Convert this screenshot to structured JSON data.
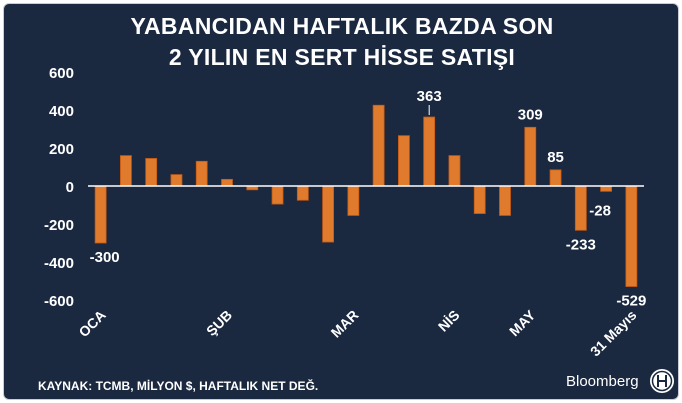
{
  "header": {
    "title_line1": "YABANCIDAN HAFTALIK BAZDA SON",
    "title_line2": "2 YILIN EN SERT HİSSE SATIŞI"
  },
  "footer": {
    "source": "KAYNAK: TCMB, MİLYON $, HAFTALIK NET DEĞ.",
    "brand": "Bloomberg",
    "logo_icon": "ht-emblem-icon"
  },
  "colors": {
    "background": "#1a2840",
    "bar": "#e07a2c",
    "text": "#ffffff"
  },
  "chart_data": {
    "type": "bar",
    "title": "YABANCIDAN HAFTALIK BAZDA SON 2 YILIN EN SERT HİSSE SATIŞI",
    "ylim": [
      -600,
      600
    ],
    "yticks": [
      600,
      400,
      200,
      0,
      -200,
      -400,
      -600
    ],
    "grid": false,
    "values": [
      -300,
      160,
      145,
      60,
      130,
      35,
      -20,
      -95,
      -75,
      -295,
      -155,
      425,
      265,
      363,
      160,
      -145,
      -155,
      309,
      85,
      -233,
      -28,
      -529
    ],
    "data_labels": [
      {
        "index": 0,
        "text": "-300"
      },
      {
        "index": 13,
        "text": "363"
      },
      {
        "index": 17,
        "text": "309"
      },
      {
        "index": 18,
        "text": "85"
      },
      {
        "index": 19,
        "text": "-233"
      },
      {
        "index": 20,
        "text": "-28"
      },
      {
        "index": 21,
        "text": "-529"
      }
    ],
    "x_labels": [
      {
        "index": 0,
        "text": "OCA"
      },
      {
        "index": 5,
        "text": "ŞUB"
      },
      {
        "index": 10,
        "text": "MAR"
      },
      {
        "index": 14,
        "text": "NİS"
      },
      {
        "index": 17,
        "text": "MAY"
      },
      {
        "index": 21,
        "text": "31 Mayıs"
      }
    ]
  }
}
